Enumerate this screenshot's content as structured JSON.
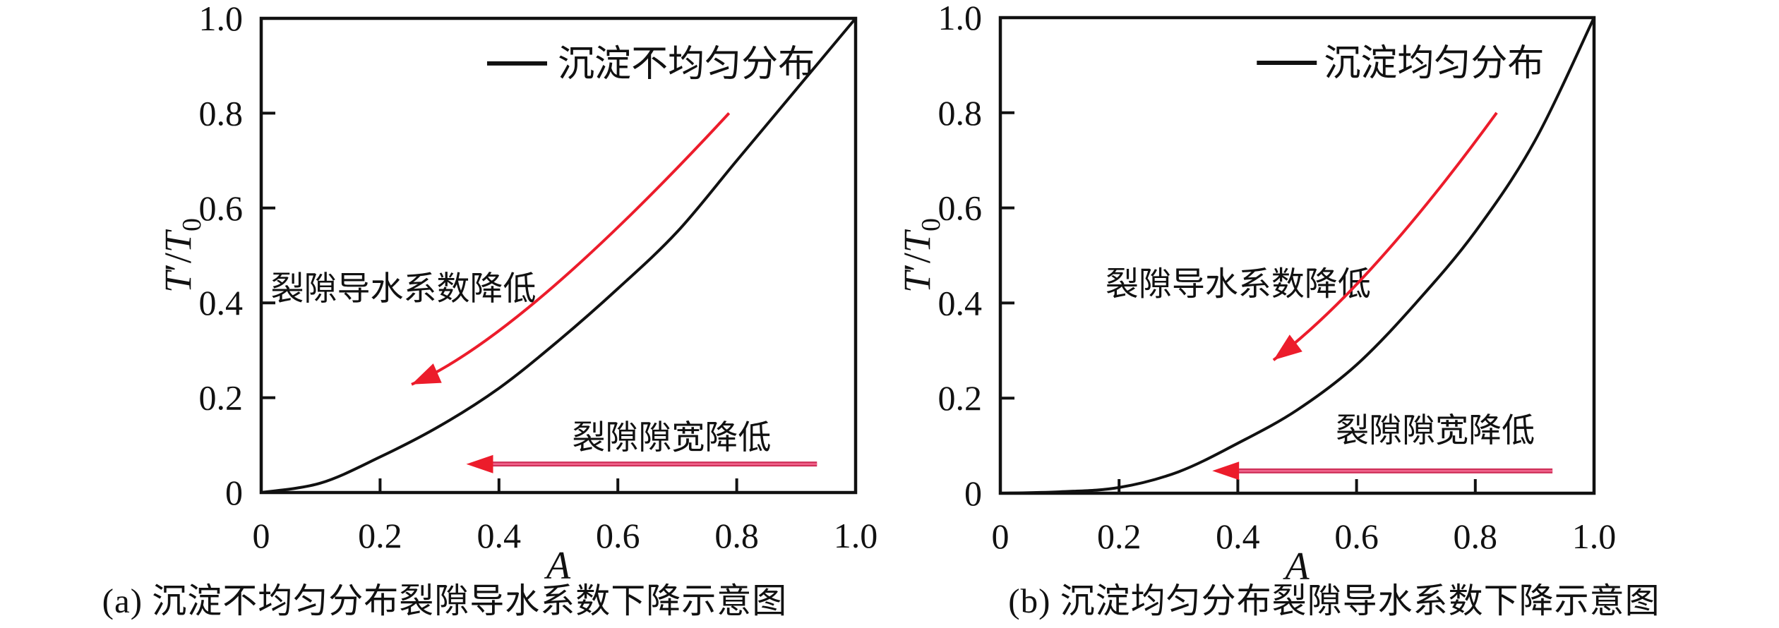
{
  "style": {
    "background": "#ffffff",
    "axis_color": "#111111",
    "text_color": "#111111",
    "curve_color": "#111111",
    "arrow_color": "#ec1c2b",
    "arrow_shaft_color": "#cf3059",
    "arrow_shaft_core": "#f2678f"
  },
  "chart_data": [
    {
      "panel": "a",
      "type": "line",
      "title": "(a) 沉淀不均匀分布裂隙导水系数下降示意图",
      "xlabel": "A",
      "ylabel_parts": [
        {
          "t": "T",
          "italic": true
        },
        {
          "t": "′",
          "italic": false
        },
        {
          "t": "/",
          "italic": false
        },
        {
          "t": "T",
          "italic": true
        },
        {
          "t": "0",
          "sub": true
        }
      ],
      "xlim": [
        0,
        1
      ],
      "ylim": [
        0,
        1
      ],
      "grid": false,
      "xticks": {
        "values": [
          0,
          0.2,
          0.4,
          0.6,
          0.8,
          1.0
        ],
        "labels": [
          "0",
          "0.2",
          "0.4",
          "0.6",
          "0.8",
          "1.0"
        ]
      },
      "yticks": {
        "values": [
          0,
          0.2,
          0.4,
          0.6,
          0.8,
          1.0
        ],
        "labels": [
          "0",
          "0.2",
          "0.4",
          "0.6",
          "0.8",
          "1.0"
        ]
      },
      "legend": {
        "label": "沉淀不均匀分布",
        "line_x": [
          0.38,
          0.481
        ],
        "text_x": 0.499,
        "y": 0.905,
        "position": "upper right inside"
      },
      "series": [
        {
          "name": "沉淀不均匀分布",
          "x": [
            0,
            0.1,
            0.2,
            0.3,
            0.4,
            0.5,
            0.6,
            0.7,
            0.8,
            0.9,
            1.0
          ],
          "y": [
            0,
            0.02,
            0.075,
            0.14,
            0.22,
            0.32,
            0.43,
            0.55,
            0.7,
            0.85,
            1.0
          ]
        }
      ],
      "annotations": [
        {
          "id": "conductivity-decrease-label",
          "text": "裂隙导水系数降低",
          "x": 0.016,
          "y": 0.43
        },
        {
          "id": "aperture-decrease-label",
          "text": "裂隙隙宽降低",
          "x": 0.523,
          "y": 0.116
        }
      ],
      "arrows": [
        {
          "id": "conductivity-decrease-arrow",
          "kind": "curved",
          "tail": [
            0.787,
            0.8
          ],
          "ctrl": [
            0.44,
            0.33
          ],
          "head": [
            0.253,
            0.228
          ]
        },
        {
          "id": "aperture-decrease-arrow",
          "kind": "straight",
          "tail": [
            0.935,
            0.06
          ],
          "head": [
            0.345,
            0.06
          ]
        }
      ]
    },
    {
      "panel": "b",
      "type": "line",
      "title": "(b) 沉淀均匀分布裂隙导水系数下降示意图",
      "xlabel": "A",
      "ylabel_parts": [
        {
          "t": "T",
          "italic": true
        },
        {
          "t": "′",
          "italic": false
        },
        {
          "t": "/",
          "italic": false
        },
        {
          "t": "T",
          "italic": true
        },
        {
          "t": "0",
          "sub": true
        }
      ],
      "xlim": [
        0,
        1
      ],
      "ylim": [
        0,
        1
      ],
      "grid": false,
      "xticks": {
        "values": [
          0,
          0.2,
          0.4,
          0.6,
          0.8,
          1.0
        ],
        "labels": [
          "0",
          "0.2",
          "0.4",
          "0.6",
          "0.8",
          "1.0"
        ]
      },
      "yticks": {
        "values": [
          0,
          0.2,
          0.4,
          0.6,
          0.8,
          1.0
        ],
        "labels": [
          "0",
          "0.2",
          "0.4",
          "0.6",
          "0.8",
          "1.0"
        ]
      },
      "legend": {
        "label": "沉淀均匀分布",
        "line_x": [
          0.432,
          0.533
        ],
        "text_x": 0.545,
        "y": 0.905,
        "position": "upper right inside"
      },
      "series": [
        {
          "name": "沉淀均匀分布",
          "x": [
            0,
            0.1,
            0.2,
            0.3,
            0.4,
            0.5,
            0.6,
            0.7,
            0.8,
            0.9,
            1.0
          ],
          "y": [
            0,
            0.003,
            0.012,
            0.045,
            0.105,
            0.175,
            0.27,
            0.4,
            0.55,
            0.74,
            1.0
          ]
        }
      ],
      "annotations": [
        {
          "id": "conductivity-decrease-label",
          "text": "裂隙导水系数降低",
          "x": 0.177,
          "y": 0.44
        },
        {
          "id": "aperture-decrease-label",
          "text": "裂隙隙宽降低",
          "x": 0.565,
          "y": 0.132
        }
      ],
      "arrows": [
        {
          "id": "conductivity-decrease-arrow",
          "kind": "curved",
          "tail": [
            0.836,
            0.8
          ],
          "ctrl": [
            0.62,
            0.43
          ],
          "head": [
            0.46,
            0.28
          ]
        },
        {
          "id": "aperture-decrease-arrow",
          "kind": "straight",
          "tail": [
            0.93,
            0.047
          ],
          "head": [
            0.357,
            0.047
          ]
        }
      ]
    }
  ]
}
